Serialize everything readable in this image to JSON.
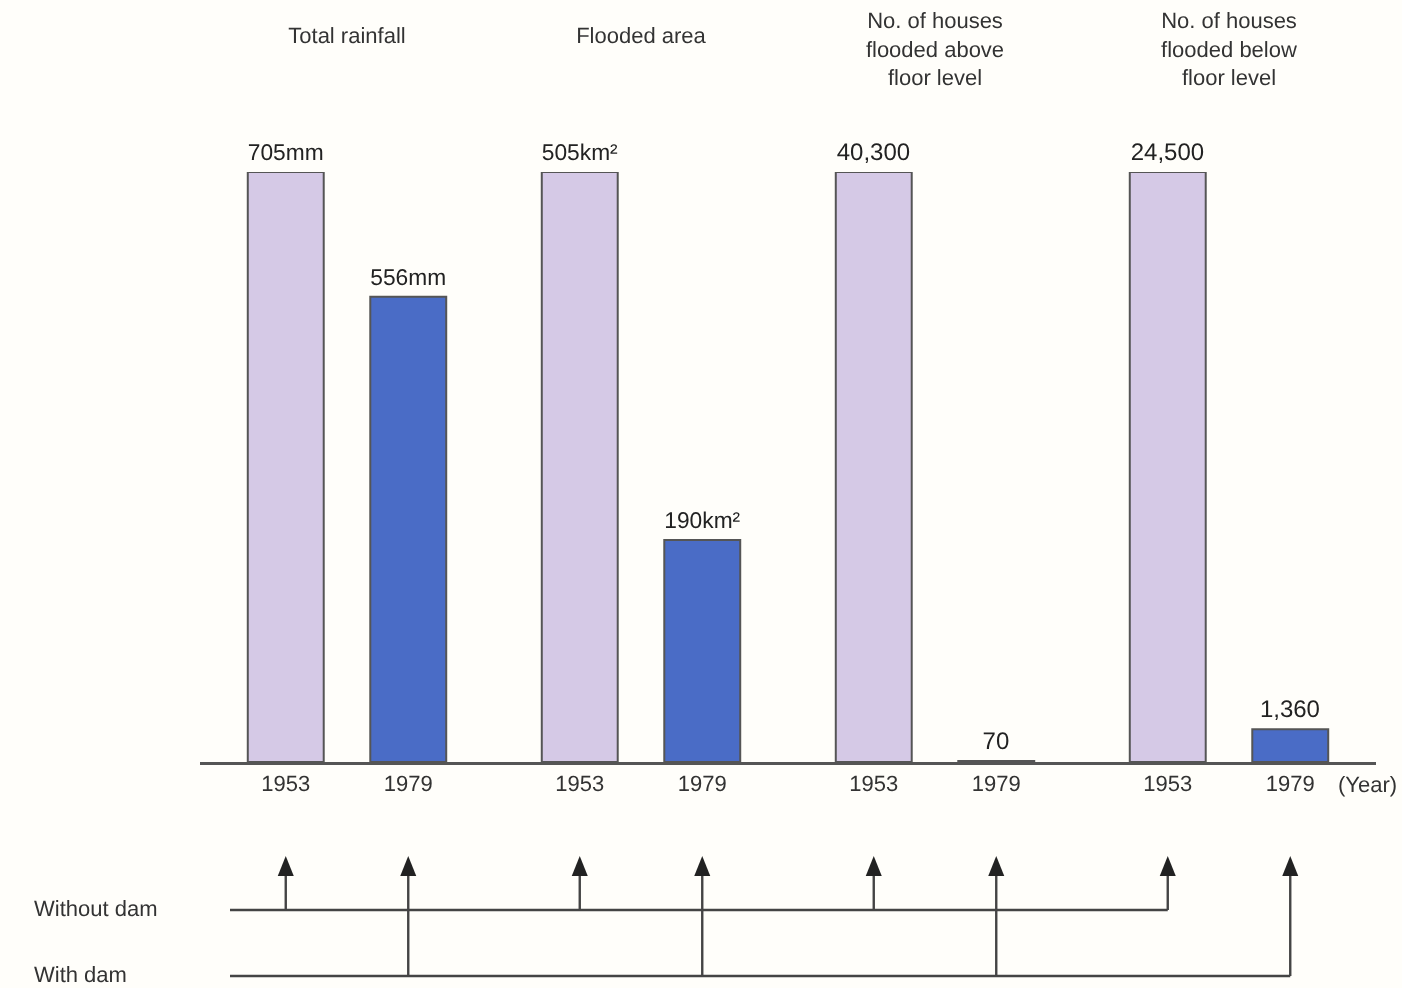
{
  "chart_data": [
    {
      "type": "bar",
      "title": "Total rainfall",
      "categories": [
        "1953",
        "1979"
      ],
      "values": [
        705,
        556
      ],
      "colors": [
        "#d5c9e6",
        "#4a6cc6"
      ],
      "value_labels": [
        "705mm",
        "556mm"
      ],
      "annotations": [
        "Without dam",
        "With dam"
      ]
    },
    {
      "type": "bar",
      "title": "Flooded area",
      "categories": [
        "1953",
        "1979"
      ],
      "values": [
        505,
        190
      ],
      "colors": [
        "#d5c9e6",
        "#4a6cc6"
      ],
      "value_labels": [
        "505km²",
        "190km²"
      ]
    },
    {
      "type": "bar",
      "title": "No. of houses flooded above floor level",
      "categories": [
        "1953",
        "1979"
      ],
      "values": [
        40300,
        70
      ],
      "colors": [
        "#d5c9e6",
        "#4a6cc6"
      ],
      "value_labels": [
        "40,300",
        "70"
      ]
    },
    {
      "type": "bar",
      "title": "No. of houses flooded below floor level",
      "categories": [
        "1953",
        "1979"
      ],
      "values": [
        24500,
        1360
      ],
      "colors": [
        "#d5c9e6",
        "#4a6cc6"
      ],
      "value_labels": [
        "24,500",
        "1,360"
      ],
      "xlabel": "(Year)"
    }
  ]
}
